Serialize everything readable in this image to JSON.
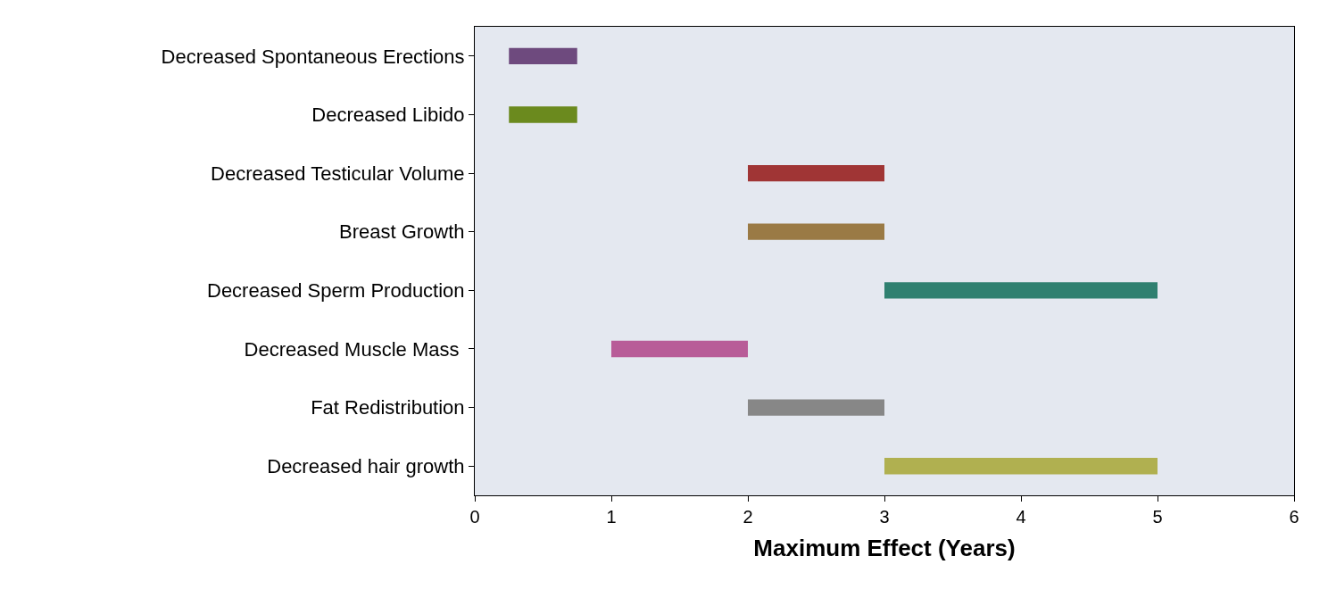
{
  "chart_data": {
    "type": "bar",
    "orientation": "horizontal",
    "xlabel": "Maximum Effect (Years)",
    "categories": [
      "Decreased Spontaneous Erections",
      "Decreased Libido",
      "Decreased Testicular Volume",
      "Breast Growth",
      "Decreased Sperm Production",
      "Decreased Muscle Mass ",
      "Fat Redistribution",
      "Decreased hair growth"
    ],
    "base": [
      0.25,
      0.25,
      2,
      2,
      3,
      1,
      2,
      3
    ],
    "values": [
      0.5,
      0.5,
      1,
      1,
      2,
      1,
      1,
      2
    ],
    "colors": [
      "#6e4a7e",
      "#6b8a1e",
      "#a03535",
      "#9a7a45",
      "#2f8070",
      "#b85c98",
      "#878787",
      "#b0b050"
    ],
    "xlim": [
      0,
      6
    ],
    "xticks": [
      0,
      1,
      2,
      3,
      4,
      5,
      6
    ],
    "grid": false,
    "legend": false
  }
}
